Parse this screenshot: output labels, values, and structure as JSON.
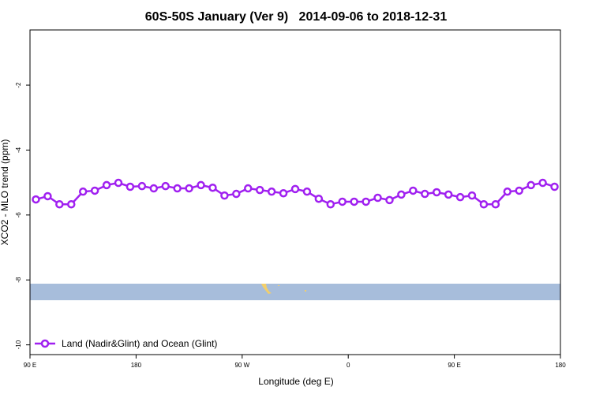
{
  "chart_data": {
    "type": "line",
    "title": "60S-50S January (Ver 9)   2014-09-06 to 2018-12-31",
    "x_label": "Longitude (deg E)",
    "y_label": "XCO2 - MLO trend (ppm)",
    "x": [
      95,
      105,
      115,
      125,
      135,
      145,
      155,
      165,
      175,
      185,
      195,
      205,
      215,
      225,
      235,
      245,
      255,
      265,
      275,
      285,
      295,
      305,
      315,
      325,
      335,
      345,
      355,
      365,
      375,
      385,
      395,
      405,
      415,
      425,
      435,
      445,
      455,
      465,
      475,
      485,
      495,
      505,
      515,
      525,
      535
    ],
    "series": [
      {
        "name": "Land (Nadir&Glint) and Ocean (Glint)",
        "color": "#a020f0",
        "values": [
          -5.52,
          -5.42,
          -5.67,
          -5.67,
          -5.28,
          -5.25,
          -5.08,
          -5.01,
          -5.13,
          -5.11,
          -5.18,
          -5.11,
          -5.18,
          -5.18,
          -5.08,
          -5.16,
          -5.4,
          -5.35,
          -5.18,
          -5.23,
          -5.28,
          -5.33,
          -5.2,
          -5.28,
          -5.5,
          -5.67,
          -5.59,
          -5.59,
          -5.59,
          -5.47,
          -5.54,
          -5.37,
          -5.25,
          -5.35,
          -5.3,
          -5.37,
          -5.45,
          -5.4,
          -5.67,
          -5.67,
          -5.28,
          -5.25,
          -5.08,
          -5.01,
          -5.13
        ]
      }
    ],
    "xlim": [
      90,
      540
    ],
    "xticks": [
      {
        "value": 90,
        "label": "90 E"
      },
      {
        "value": 180,
        "label": "180"
      },
      {
        "value": 270,
        "label": "90 W"
      },
      {
        "value": 360,
        "label": "0"
      },
      {
        "value": 450,
        "label": "90 E"
      },
      {
        "value": 540,
        "label": "180"
      }
    ],
    "ylim": [
      -10.3,
      -0.3
    ],
    "yticks": [
      -10,
      -8,
      -6,
      -4,
      -2
    ],
    "legend": "bottom-left"
  }
}
